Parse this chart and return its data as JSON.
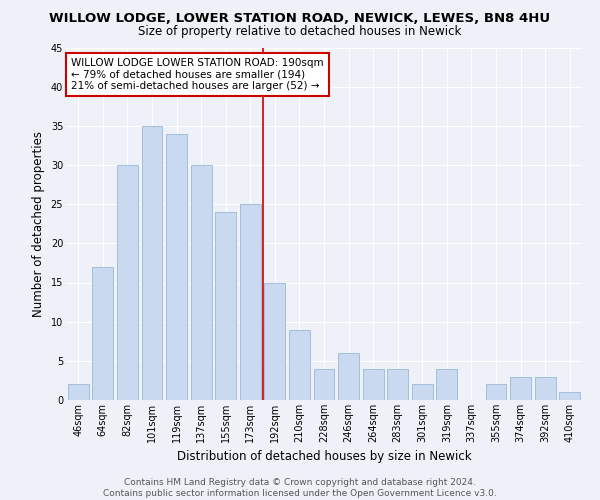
{
  "title": "WILLOW LODGE, LOWER STATION ROAD, NEWICK, LEWES, BN8 4HU",
  "subtitle": "Size of property relative to detached houses in Newick",
  "xlabel": "Distribution of detached houses by size in Newick",
  "ylabel": "Number of detached properties",
  "categories": [
    "46sqm",
    "64sqm",
    "82sqm",
    "101sqm",
    "119sqm",
    "137sqm",
    "155sqm",
    "173sqm",
    "192sqm",
    "210sqm",
    "228sqm",
    "246sqm",
    "264sqm",
    "283sqm",
    "301sqm",
    "319sqm",
    "337sqm",
    "355sqm",
    "374sqm",
    "392sqm",
    "410sqm"
  ],
  "values": [
    2,
    17,
    30,
    35,
    34,
    30,
    24,
    25,
    15,
    9,
    4,
    6,
    4,
    4,
    2,
    4,
    0,
    2,
    3,
    3,
    1
  ],
  "bar_color": "#c9d9ef",
  "bar_edge_color": "#9ab8d8",
  "vline_index": 8,
  "vline_color": "#cc0000",
  "annotation_text": "WILLOW LODGE LOWER STATION ROAD: 190sqm\n← 79% of detached houses are smaller (194)\n21% of semi-detached houses are larger (52) →",
  "annotation_box_facecolor": "#ffffff",
  "annotation_box_edgecolor": "#cc0000",
  "ylim": [
    0,
    45
  ],
  "yticks": [
    0,
    5,
    10,
    15,
    20,
    25,
    30,
    35,
    40,
    45
  ],
  "footer_text": "Contains HM Land Registry data © Crown copyright and database right 2024.\nContains public sector information licensed under the Open Government Licence v3.0.",
  "bg_color": "#eef2f8",
  "grid_color": "#ffffff",
  "title_fontsize": 9.5,
  "subtitle_fontsize": 8.5,
  "tick_fontsize": 7,
  "axis_label_fontsize": 8.5,
  "annotation_fontsize": 7.5,
  "footer_fontsize": 6.5
}
